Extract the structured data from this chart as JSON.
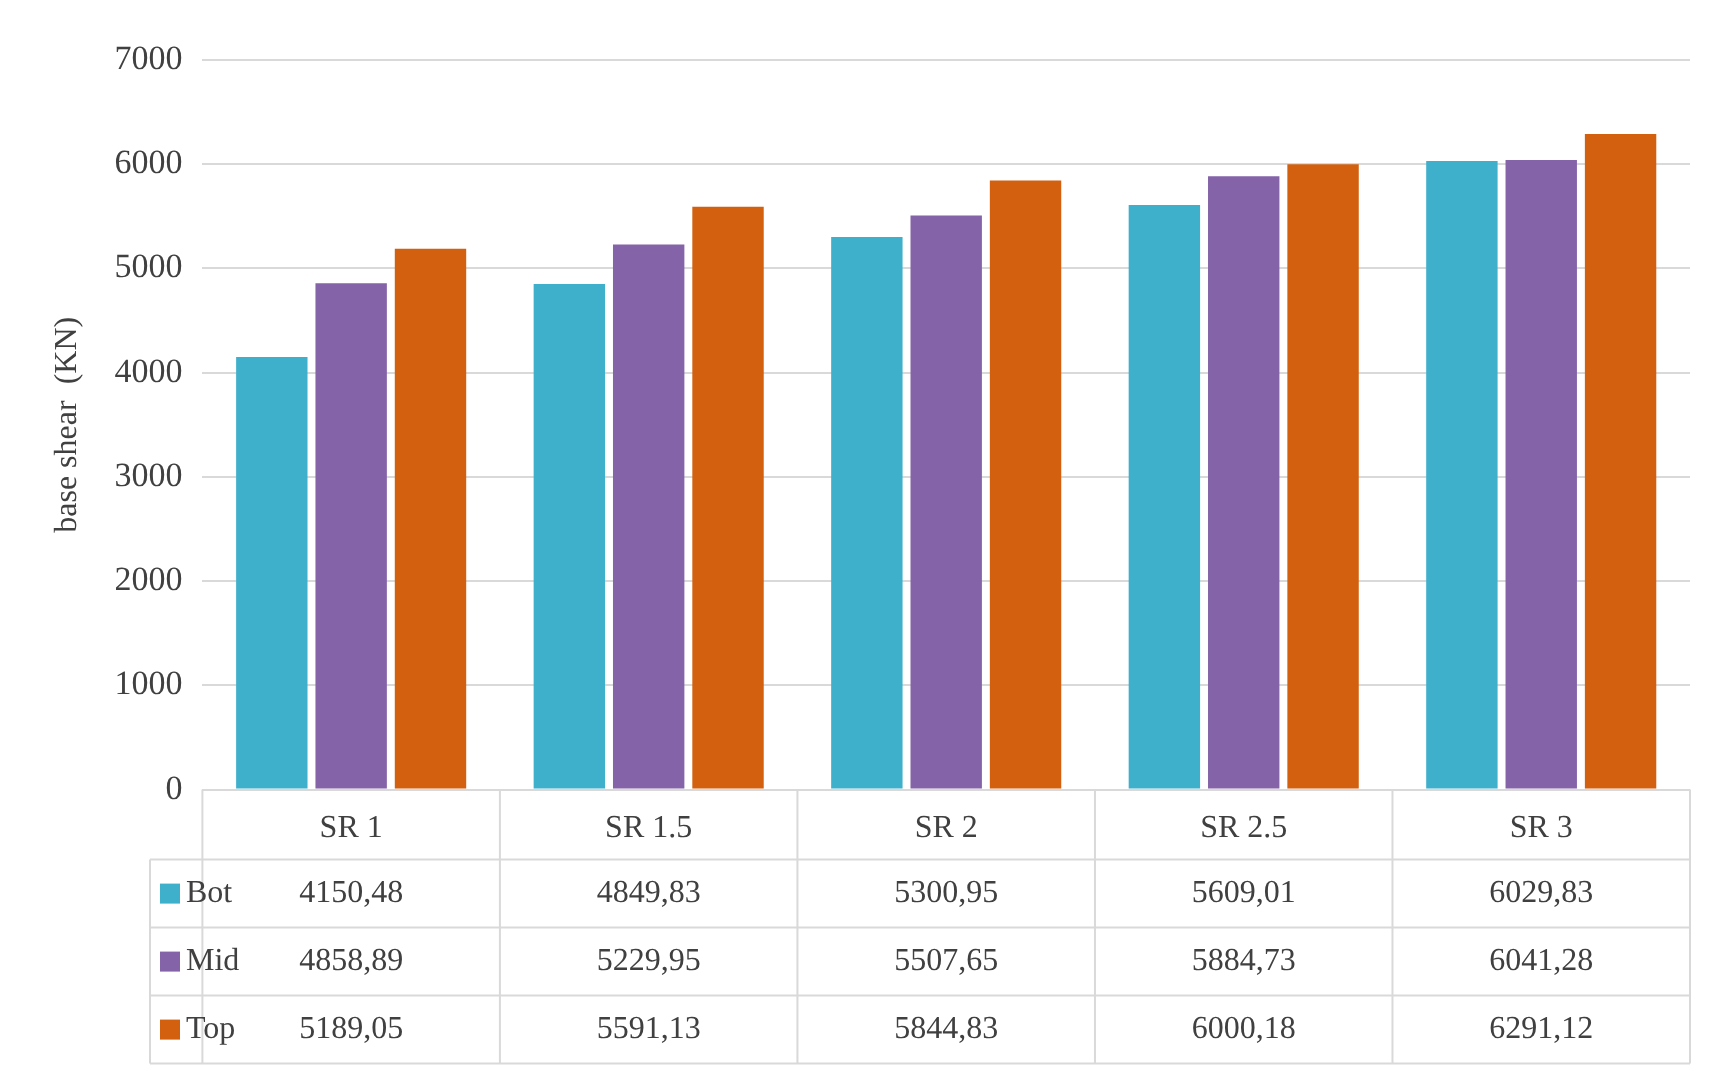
{
  "chart_data": {
    "type": "bar",
    "ylabel": "base shear  (KN)",
    "categories": [
      "SR 1",
      "SR 1.5",
      "SR 2",
      "SR 2.5",
      "SR 3"
    ],
    "series": [
      {
        "name": "Bot",
        "color": "#3fb0cc",
        "values": [
          4150.48,
          4849.83,
          5300.95,
          5609.01,
          6029.83
        ],
        "value_labels": [
          "4150,48",
          "4849,83",
          "5300,95",
          "5609,01",
          "6029,83"
        ]
      },
      {
        "name": "Mid",
        "color": "#8563a8",
        "values": [
          4858.89,
          5229.95,
          5507.65,
          5884.73,
          6041.28
        ],
        "value_labels": [
          "4858,89",
          "5229,95",
          "5507,65",
          "5884,73",
          "6041,28"
        ]
      },
      {
        "name": "Top",
        "color": "#d2600f",
        "values": [
          5189.05,
          5591.13,
          5844.83,
          6000.18,
          6291.12
        ],
        "value_labels": [
          "5189,05",
          "5591,13",
          "5844,83",
          "6000,18",
          "6291,12"
        ]
      }
    ],
    "ylim": [
      0,
      7000
    ],
    "yticks": [
      0,
      1000,
      2000,
      3000,
      4000,
      5000,
      6000,
      7000
    ],
    "grid": "y",
    "legend": "bottom"
  }
}
